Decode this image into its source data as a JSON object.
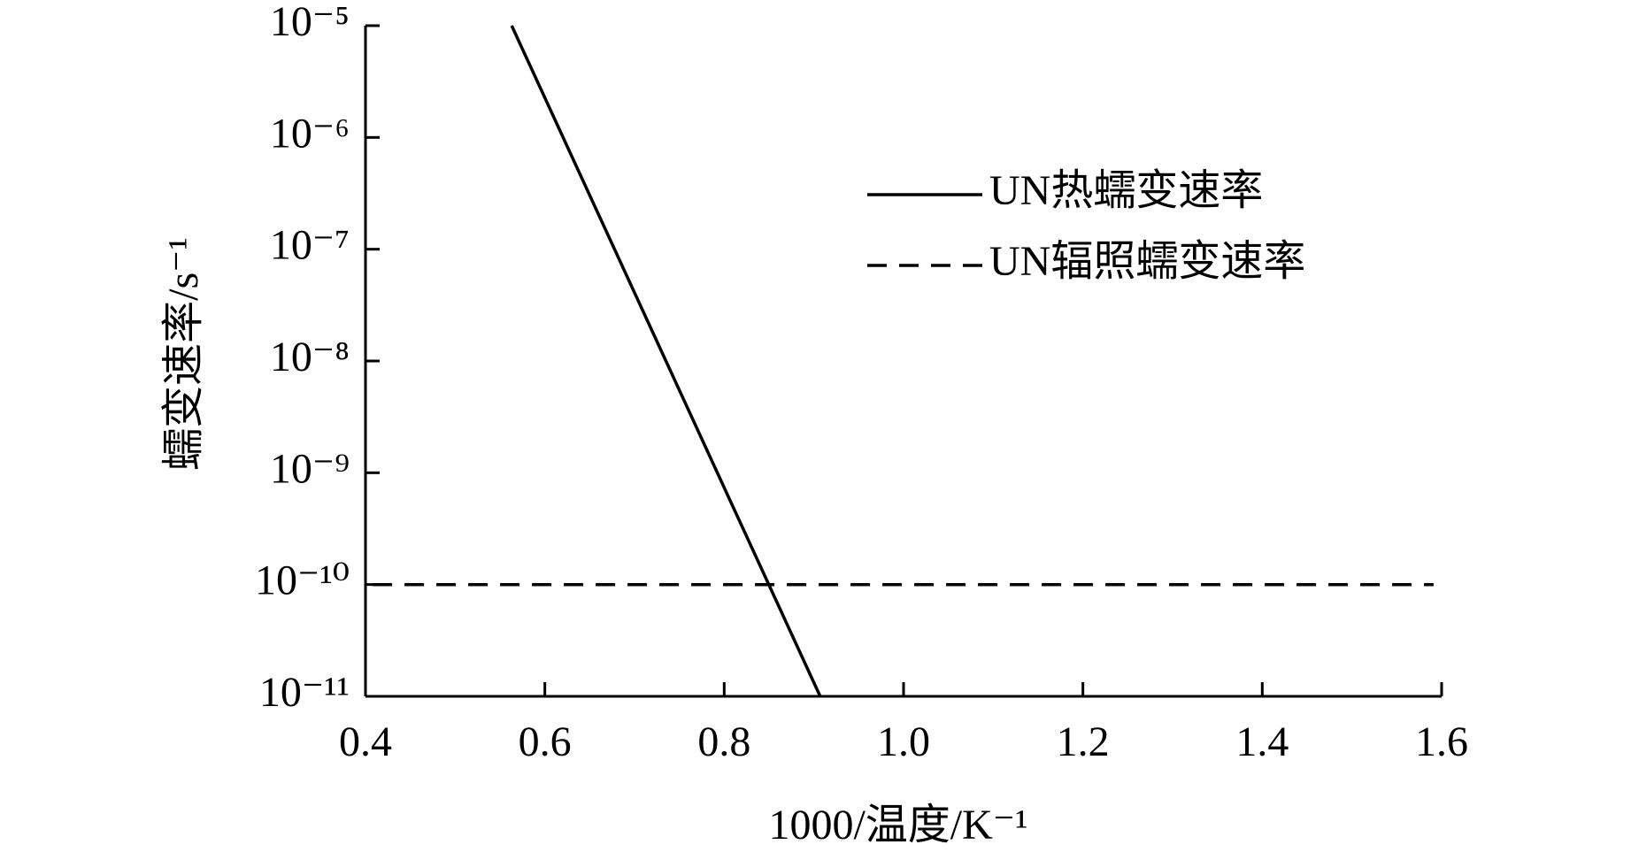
{
  "chart_data": {
    "type": "line",
    "x_label": "1000/温度/K⁻¹",
    "y_label": "蠕变速率/s⁻¹",
    "log_y": true,
    "xlim": [
      0.4,
      1.6
    ],
    "xticks": [
      0.4,
      0.6,
      0.8,
      {
        "value": 1,
        "label": "1.0"
      },
      1.2,
      1.4,
      1.6
    ],
    "ylim": [
      1e-11,
      1e-05
    ],
    "yticks": [
      {
        "value": 1e-11,
        "label": "10⁻¹¹"
      },
      {
        "value": 1e-10,
        "label": "10⁻¹⁰"
      },
      {
        "value": 1e-09,
        "label": "10⁻⁹"
      },
      {
        "value": 1e-08,
        "label": "10⁻⁸"
      },
      {
        "value": 1e-07,
        "label": "10⁻⁷"
      },
      {
        "value": 1e-06,
        "label": "10⁻⁶"
      },
      {
        "value": 1e-05,
        "label": "10⁻⁵"
      }
    ],
    "legend": "upper right",
    "series": [
      {
        "name": "UN热蠕变速率",
        "color": "#000000",
        "style": "solid",
        "x": [
          0.563,
          0.907
        ],
        "values": [
          1e-05,
          1e-11
        ]
      },
      {
        "name": "UN辐照蠕变速率",
        "color": "#000000",
        "style": "dashed",
        "x": [
          0.408,
          1.591
        ],
        "values": [
          1e-10,
          1e-10
        ]
      }
    ]
  }
}
